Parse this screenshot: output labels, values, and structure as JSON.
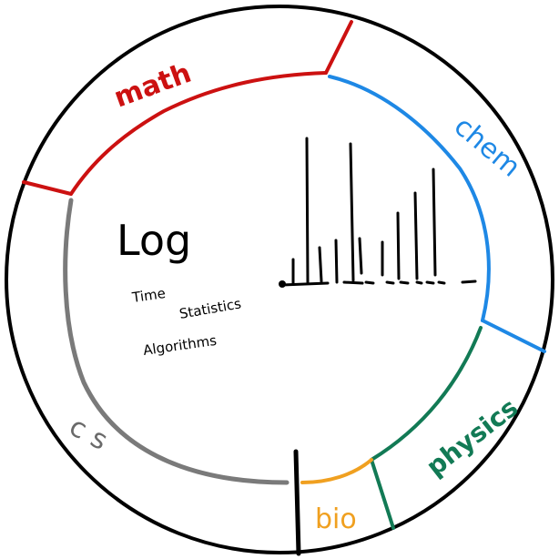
{
  "title": "Log",
  "subtopics": [
    "Time",
    "Statistics",
    "Algorithms"
  ],
  "sections": [
    {
      "id": "math",
      "label": "math",
      "color": "#cc1111"
    },
    {
      "id": "chem",
      "label": "chem",
      "color": "#1e88e5"
    },
    {
      "id": "physics",
      "label": "physics",
      "color": "#127a55"
    },
    {
      "id": "bio",
      "label": "bio",
      "color": "#f0a020"
    },
    {
      "id": "cs",
      "label": "cs",
      "color": "#7a7a7a"
    }
  ],
  "colors": {
    "outline": "#000000",
    "background": "#ffffff"
  }
}
